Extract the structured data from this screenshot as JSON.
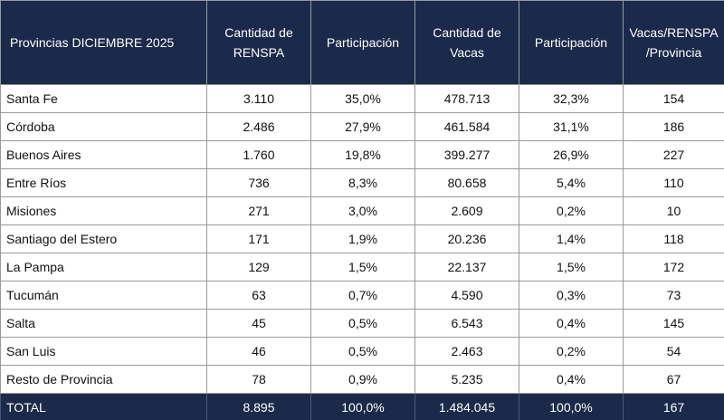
{
  "table": {
    "header": [
      "Provincias DICIEMBRE 2025",
      "Cantidad de RENSPA",
      "Participación",
      "Cantidad de Vacas",
      "Participación",
      "Vacas/RENSPA /Provincia"
    ],
    "rows": [
      [
        "Santa Fe",
        "3.110",
        "35,0%",
        "478.713",
        "32,3%",
        "154"
      ],
      [
        "Córdoba",
        "2.486",
        "27,9%",
        "461.584",
        "31,1%",
        "186"
      ],
      [
        "Buenos Aires",
        "1.760",
        "19,8%",
        "399.277",
        "26,9%",
        "227"
      ],
      [
        "Entre Ríos",
        "736",
        "8,3%",
        "80.658",
        "5,4%",
        "110"
      ],
      [
        "Misiones",
        "271",
        "3,0%",
        "2.609",
        "0,2%",
        "10"
      ],
      [
        "Santiago del Estero",
        "171",
        "1,9%",
        "20.236",
        "1,4%",
        "118"
      ],
      [
        "La Pampa",
        "129",
        "1,5%",
        "22.137",
        "1,5%",
        "172"
      ],
      [
        "Tucumán",
        "63",
        "0,7%",
        "4.590",
        "0,3%",
        "73"
      ],
      [
        "Salta",
        "45",
        "0,5%",
        "6.543",
        "0,4%",
        "145"
      ],
      [
        "San Luis",
        "46",
        "0,5%",
        "2.463",
        "0,2%",
        "54"
      ],
      [
        "Resto de Provincia",
        "78",
        "0,9%",
        "5.235",
        "0,4%",
        "67"
      ]
    ],
    "total": [
      "TOTAL",
      "8.895",
      "100,0%",
      "1.484.045",
      "100,0%",
      "167"
    ]
  }
}
